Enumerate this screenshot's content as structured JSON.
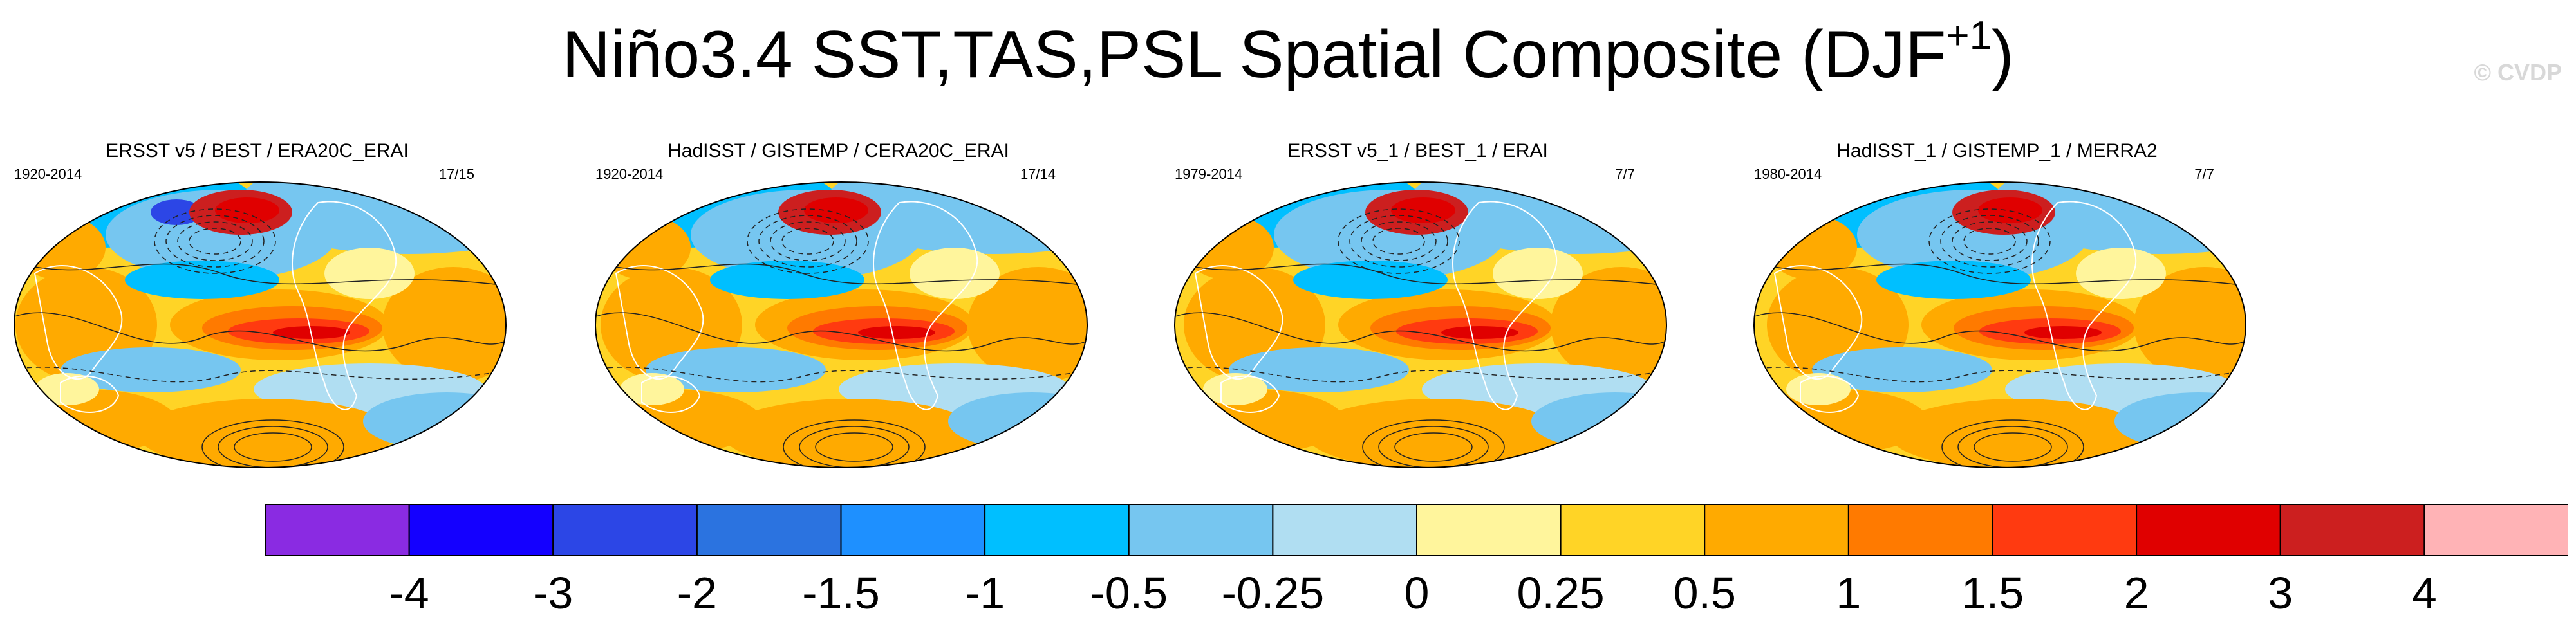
{
  "title": {
    "main": "Niño3.4 SST,TAS,PSL Spatial Composite (DJF",
    "superscript": "+1",
    "close": ")"
  },
  "watermark": "© CVDP",
  "panels": [
    {
      "title": "ERSST v5 / BEST / ERA20C_ERAI",
      "years": "1920-2014",
      "count": "17/15"
    },
    {
      "title": "HadISST / GISTEMP / CERA20C_ERAI",
      "years": "1920-2014",
      "count": "17/14"
    },
    {
      "title": "ERSST v5_1 / BEST_1 / ERAI",
      "years": "1979-2014",
      "count": "7/7"
    },
    {
      "title": "HadISST_1 / GISTEMP_1 / MERRA2",
      "years": "1980-2014",
      "count": "7/7"
    }
  ],
  "colorbar": {
    "colors": [
      "#8a2be2",
      "#1400ff",
      "#2c46e6",
      "#2b73e0",
      "#1e90ff",
      "#00bfff",
      "#76c6f0",
      "#b0def2",
      "#fff59c",
      "#ffd426",
      "#ffaa00",
      "#ff7a00",
      "#ff3a10",
      "#e00000",
      "#cc1f1f",
      "#ffb3b6"
    ],
    "labels": [
      "-4",
      "-3",
      "-2",
      "-1.5",
      "-1",
      "-0.5",
      "-0.25",
      "0",
      "0.25",
      "0.5",
      "1",
      "1.5",
      "2",
      "3",
      "4"
    ]
  }
}
